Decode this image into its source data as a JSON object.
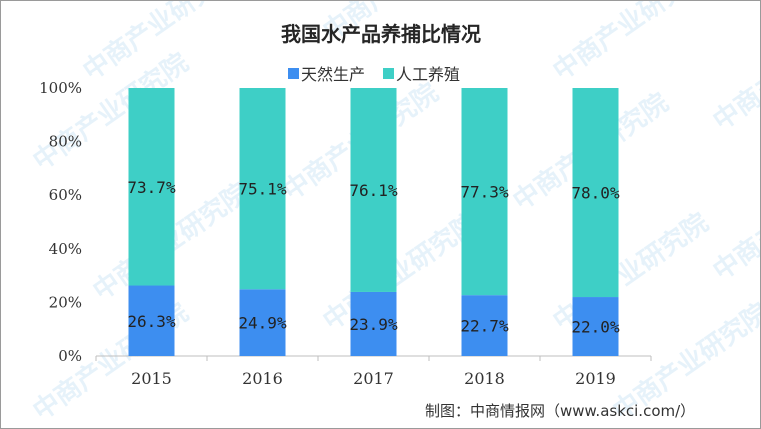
{
  "watermark": "中商产业研究院",
  "source": "制图：中商情报网（www.askci.com/）",
  "colors": {
    "natural": "#3d8ef0",
    "farmed": "#3ecfc6",
    "axis": "#bfbfbf",
    "watermark": "#4aa3df"
  },
  "chart_data": {
    "type": "bar",
    "stacked": true,
    "percent_stacked": true,
    "title": "我国水产品养捕比情况",
    "categories": [
      "2015",
      "2016",
      "2017",
      "2018",
      "2019"
    ],
    "series": [
      {
        "name": "天然生产",
        "values": [
          26.3,
          24.9,
          23.9,
          22.7,
          22.0
        ],
        "labels": [
          "26.3%",
          "24.9%",
          "23.9%",
          "22.7%",
          "22.0%"
        ]
      },
      {
        "name": "人工养殖",
        "values": [
          73.7,
          75.1,
          76.1,
          77.3,
          78.0
        ],
        "labels": [
          "73.7%",
          "75.1%",
          "76.1%",
          "77.3%",
          "78.0%"
        ]
      }
    ],
    "yticks": [
      "0%",
      "20%",
      "40%",
      "60%",
      "80%",
      "100%"
    ],
    "ylim": [
      0,
      100
    ],
    "grid": false,
    "legend": "top"
  }
}
